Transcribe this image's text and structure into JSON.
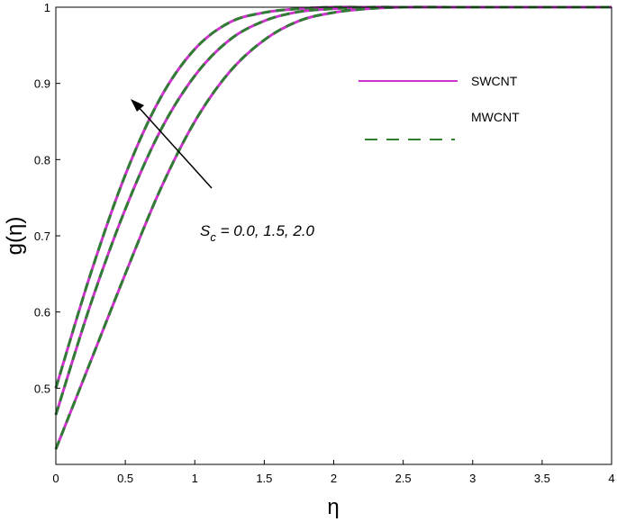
{
  "chart_data": {
    "type": "line",
    "xlabel": "η",
    "ylabel": "g(η)",
    "xlim": [
      0,
      4
    ],
    "ylim": [
      0.4,
      1.0
    ],
    "xticks": [
      "0",
      "0.5",
      "1",
      "1.5",
      "2",
      "2.5",
      "3",
      "3.5",
      "4"
    ],
    "yticks": [
      "0.5",
      "0.6",
      "0.7",
      "0.8",
      "0.9",
      "1"
    ],
    "grid": false,
    "legend_position": "top-right",
    "legend": [
      {
        "label": "SWCNT",
        "color": "#cc33cc",
        "style": "solid"
      },
      {
        "label": "MWCNT",
        "color": "#2e7d32",
        "style": "dashed"
      }
    ],
    "annotation": {
      "symbol": "S",
      "subscript": "c",
      "values_text": " = 0.0, 1.5, 2.0"
    },
    "x": [
      0,
      0.25,
      0.5,
      0.75,
      1.0,
      1.25,
      1.5,
      1.75,
      2.0,
      2.25,
      2.5,
      3.0,
      3.5,
      4.0
    ],
    "series": [
      {
        "param": "0.0",
        "y": [
          0.5,
          0.65,
          0.78,
          0.88,
          0.945,
          0.98,
          0.993,
          0.998,
          1.0,
          1.0,
          1.0,
          1.0,
          1.0,
          1.0
        ]
      },
      {
        "param": "1.5",
        "y": [
          0.465,
          0.61,
          0.735,
          0.837,
          0.91,
          0.957,
          0.982,
          0.994,
          0.998,
          1.0,
          1.0,
          1.0,
          1.0,
          1.0
        ]
      },
      {
        "param": "2.0",
        "y": [
          0.42,
          0.535,
          0.65,
          0.76,
          0.85,
          0.915,
          0.957,
          0.982,
          0.993,
          0.998,
          1.0,
          1.0,
          1.0,
          1.0
        ]
      }
    ]
  }
}
